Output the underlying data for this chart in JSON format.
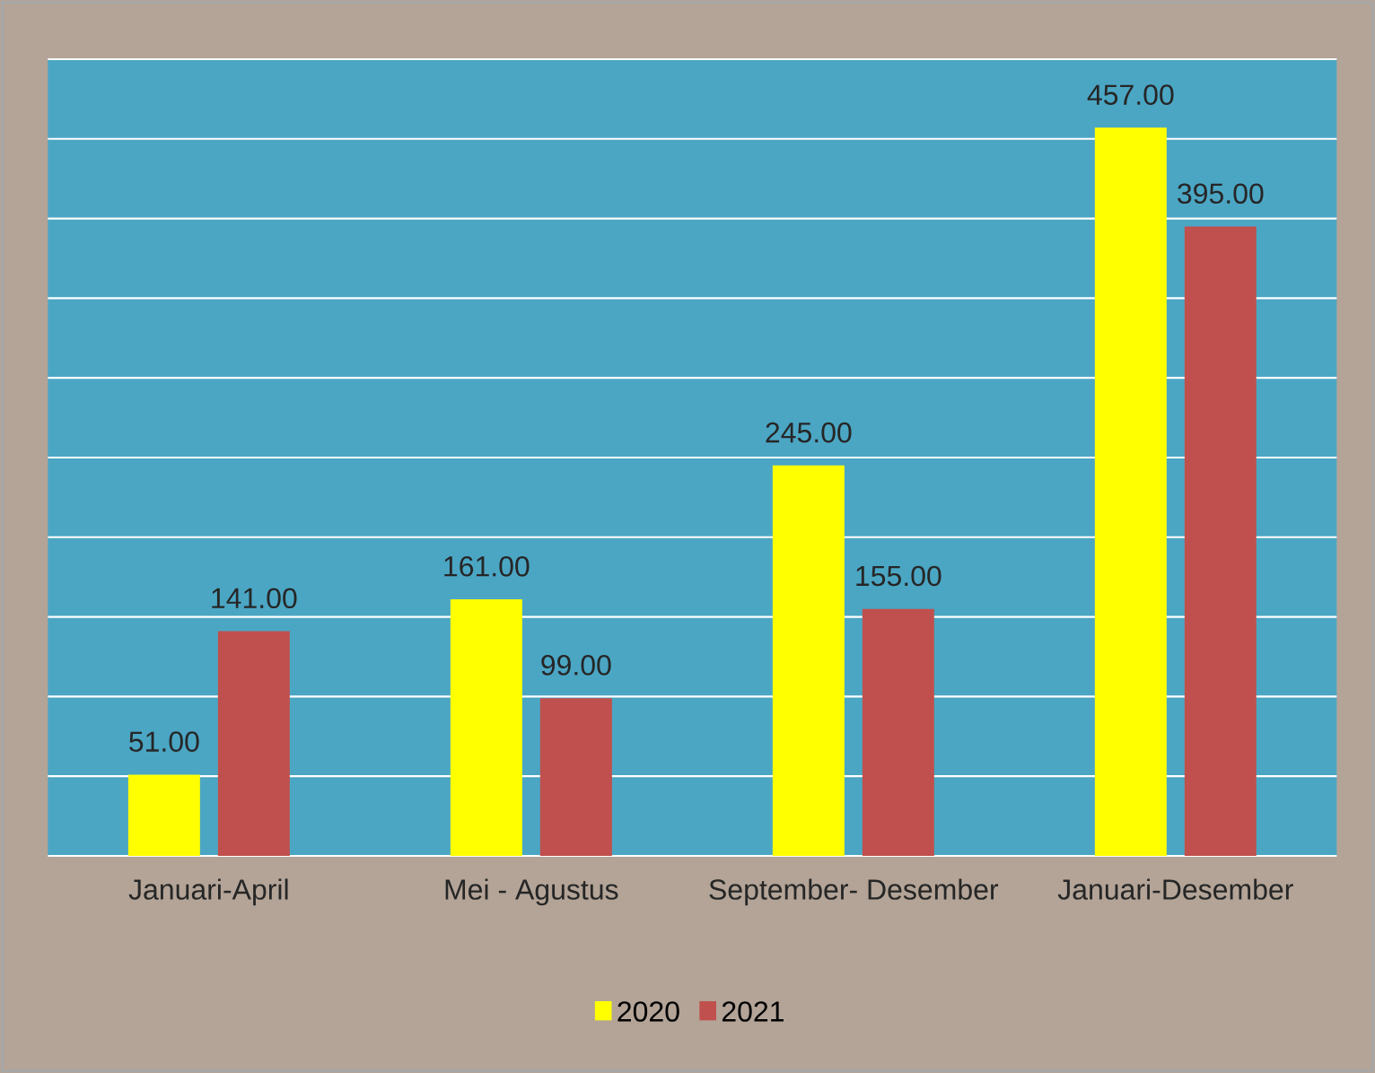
{
  "chart_data": {
    "type": "bar",
    "categories": [
      "Januari-April",
      "Mei - Agustus",
      "September- Desember",
      "Januari-Desember"
    ],
    "series": [
      {
        "name": "2020",
        "color": "#ffff00",
        "values": [
          51,
          161,
          245,
          457
        ],
        "value_labels": [
          "51.00",
          "161.00",
          "245.00",
          "457.00"
        ]
      },
      {
        "name": "2021",
        "color": "#c0504d",
        "values": [
          141,
          99,
          155,
          395
        ],
        "value_labels": [
          "141.00",
          "99.00",
          "155.00",
          "395.00"
        ]
      }
    ],
    "ylim": [
      0,
      500
    ],
    "yticks": [
      {
        "value": 0,
        "label": null
      },
      {
        "value": 50,
        "label": null
      },
      {
        "value": 100,
        "label": null
      },
      {
        "value": 150,
        "label": null
      },
      {
        "value": 200,
        "label": null
      },
      {
        "value": 250,
        "label": null
      },
      {
        "value": 300,
        "label": null
      },
      {
        "value": 350,
        "label": null
      },
      {
        "value": 400,
        "label": null
      },
      {
        "value": 450,
        "label": null
      },
      {
        "value": 500,
        "label": null
      }
    ],
    "tick_labels": "x",
    "grid": "y",
    "legend": "bottom"
  }
}
